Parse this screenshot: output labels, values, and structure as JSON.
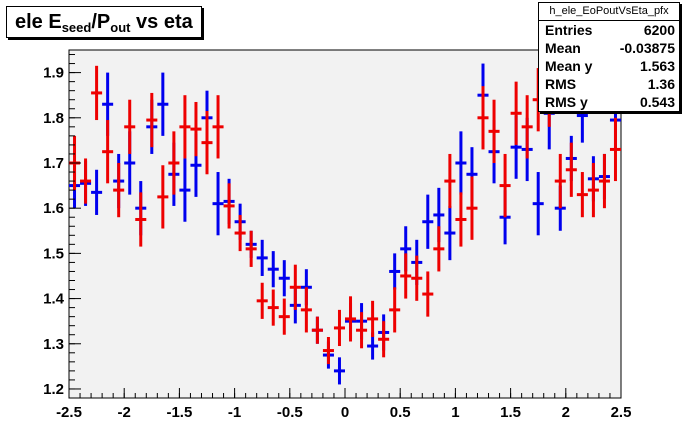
{
  "title": {
    "pre": "ele E",
    "sub1": "seed",
    "mid": "/P",
    "sub2": "out",
    "post": " vs eta"
  },
  "stats": {
    "name": "h_ele_EoPoutVsEta_pfx",
    "rows": [
      {
        "label": "Entries",
        "value": "6200"
      },
      {
        "label": "Mean",
        "value": "-0.03875"
      },
      {
        "label": "Mean y",
        "value": "1.563"
      },
      {
        "label": "RMS",
        "value": "1.36"
      },
      {
        "label": "RMS y",
        "value": "0.543"
      }
    ]
  },
  "colors": {
    "frame_bg": "#f2f2f2",
    "blue_series": "#0000ee",
    "red_series": "#ee0000",
    "axis": "#000000"
  },
  "chart_data": {
    "type": "scatter",
    "xlim": [
      -2.5,
      2.5
    ],
    "ylim": [
      1.18,
      1.95
    ],
    "grid": false,
    "xticks": [
      -2.5,
      -2,
      -1.5,
      -1,
      -0.5,
      0,
      0.5,
      1,
      1.5,
      2,
      2.5
    ],
    "xtick_labels": [
      "-2.5",
      "-2",
      "-1.5",
      "-1",
      "-0.5",
      "0",
      "0.5",
      "1",
      "1.5",
      "2",
      "2.5"
    ],
    "yticks": [
      1.2,
      1.3,
      1.4,
      1.5,
      1.6,
      1.7,
      1.8,
      1.9
    ],
    "ytick_labels": [
      "1.2",
      "1.3",
      "1.4",
      "1.5",
      "1.6",
      "1.7",
      "1.8",
      "1.9"
    ],
    "series": [
      {
        "color": "blue",
        "points": [
          {
            "x": -2.45,
            "y": 1.65,
            "err": 0.05
          },
          {
            "x": -2.35,
            "y": 1.655,
            "err": 0.05
          },
          {
            "x": -2.25,
            "y": 1.635,
            "err": 0.05
          },
          {
            "x": -2.15,
            "y": 1.83,
            "err": 0.07
          },
          {
            "x": -2.05,
            "y": 1.66,
            "err": 0.06
          },
          {
            "x": -1.95,
            "y": 1.7,
            "err": 0.07
          },
          {
            "x": -1.85,
            "y": 1.6,
            "err": 0.06
          },
          {
            "x": -1.75,
            "y": 1.78,
            "err": 0.06
          },
          {
            "x": -1.65,
            "y": 1.83,
            "err": 0.07
          },
          {
            "x": -1.55,
            "y": 1.675,
            "err": 0.07
          },
          {
            "x": -1.45,
            "y": 1.64,
            "err": 0.07
          },
          {
            "x": -1.35,
            "y": 1.695,
            "err": 0.07
          },
          {
            "x": -1.25,
            "y": 1.8,
            "err": 0.06
          },
          {
            "x": -1.15,
            "y": 1.61,
            "err": 0.07
          },
          {
            "x": -1.05,
            "y": 1.615,
            "err": 0.05
          },
          {
            "x": -0.95,
            "y": 1.57,
            "err": 0.04
          },
          {
            "x": -0.85,
            "y": 1.52,
            "err": 0.03
          },
          {
            "x": -0.75,
            "y": 1.49,
            "err": 0.04
          },
          {
            "x": -0.65,
            "y": 1.465,
            "err": 0.04
          },
          {
            "x": -0.55,
            "y": 1.445,
            "err": 0.04
          },
          {
            "x": -0.45,
            "y": 1.385,
            "err": 0.04
          },
          {
            "x": -0.35,
            "y": 1.425,
            "err": 0.04
          },
          {
            "x": -0.25,
            "y": 1.33,
            "err": 0.03
          },
          {
            "x": -0.15,
            "y": 1.275,
            "err": 0.03
          },
          {
            "x": -0.05,
            "y": 1.24,
            "err": 0.03
          },
          {
            "x": 0.05,
            "y": 1.35,
            "err": 0.04
          },
          {
            "x": 0.15,
            "y": 1.35,
            "err": 0.04
          },
          {
            "x": 0.25,
            "y": 1.295,
            "err": 0.03
          },
          {
            "x": 0.35,
            "y": 1.325,
            "err": 0.04
          },
          {
            "x": 0.45,
            "y": 1.46,
            "err": 0.04
          },
          {
            "x": 0.55,
            "y": 1.51,
            "err": 0.05
          },
          {
            "x": 0.65,
            "y": 1.48,
            "err": 0.05
          },
          {
            "x": 0.75,
            "y": 1.57,
            "err": 0.06
          },
          {
            "x": 0.85,
            "y": 1.585,
            "err": 0.06
          },
          {
            "x": 0.95,
            "y": 1.545,
            "err": 0.06
          },
          {
            "x": 1.05,
            "y": 1.7,
            "err": 0.07
          },
          {
            "x": 1.15,
            "y": 1.675,
            "err": 0.06
          },
          {
            "x": 1.25,
            "y": 1.85,
            "err": 0.07
          },
          {
            "x": 1.35,
            "y": 1.725,
            "err": 0.07
          },
          {
            "x": 1.45,
            "y": 1.58,
            "err": 0.06
          },
          {
            "x": 1.55,
            "y": 1.735,
            "err": 0.07
          },
          {
            "x": 1.65,
            "y": 1.73,
            "err": 0.07
          },
          {
            "x": 1.75,
            "y": 1.61,
            "err": 0.07
          },
          {
            "x": 1.85,
            "y": 1.81,
            "err": 0.08
          },
          {
            "x": 1.95,
            "y": 1.6,
            "err": 0.05
          },
          {
            "x": 2.05,
            "y": 1.71,
            "err": 0.05
          },
          {
            "x": 2.15,
            "y": 1.805,
            "err": 0.06
          },
          {
            "x": 2.25,
            "y": 1.665,
            "err": 0.05
          },
          {
            "x": 2.35,
            "y": 1.67,
            "err": 0.05
          },
          {
            "x": 2.45,
            "y": 1.795,
            "err": 0.07
          }
        ]
      },
      {
        "color": "red",
        "points": [
          {
            "x": -2.45,
            "y": 1.7,
            "err": 0.06
          },
          {
            "x": -2.35,
            "y": 1.66,
            "err": 0.05
          },
          {
            "x": -2.25,
            "y": 1.855,
            "err": 0.06
          },
          {
            "x": -2.15,
            "y": 1.725,
            "err": 0.07
          },
          {
            "x": -2.05,
            "y": 1.64,
            "err": 0.06
          },
          {
            "x": -1.95,
            "y": 1.78,
            "err": 0.06
          },
          {
            "x": -1.85,
            "y": 1.575,
            "err": 0.06
          },
          {
            "x": -1.75,
            "y": 1.795,
            "err": 0.06
          },
          {
            "x": -1.65,
            "y": 1.625,
            "err": 0.07
          },
          {
            "x": -1.55,
            "y": 1.7,
            "err": 0.07
          },
          {
            "x": -1.45,
            "y": 1.78,
            "err": 0.07
          },
          {
            "x": -1.35,
            "y": 1.775,
            "err": 0.06
          },
          {
            "x": -1.25,
            "y": 1.745,
            "err": 0.07
          },
          {
            "x": -1.15,
            "y": 1.78,
            "err": 0.07
          },
          {
            "x": -1.05,
            "y": 1.605,
            "err": 0.05
          },
          {
            "x": -0.95,
            "y": 1.545,
            "err": 0.04
          },
          {
            "x": -0.85,
            "y": 1.51,
            "err": 0.04
          },
          {
            "x": -0.75,
            "y": 1.395,
            "err": 0.04
          },
          {
            "x": -0.65,
            "y": 1.38,
            "err": 0.04
          },
          {
            "x": -0.55,
            "y": 1.36,
            "err": 0.04
          },
          {
            "x": -0.45,
            "y": 1.425,
            "err": 0.05
          },
          {
            "x": -0.35,
            "y": 1.375,
            "err": 0.05
          },
          {
            "x": -0.25,
            "y": 1.33,
            "err": 0.03
          },
          {
            "x": -0.15,
            "y": 1.285,
            "err": 0.03
          },
          {
            "x": -0.05,
            "y": 1.335,
            "err": 0.04
          },
          {
            "x": 0.05,
            "y": 1.355,
            "err": 0.05
          },
          {
            "x": 0.15,
            "y": 1.33,
            "err": 0.04
          },
          {
            "x": 0.25,
            "y": 1.355,
            "err": 0.04
          },
          {
            "x": 0.35,
            "y": 1.31,
            "err": 0.04
          },
          {
            "x": 0.45,
            "y": 1.375,
            "err": 0.05
          },
          {
            "x": 0.55,
            "y": 1.45,
            "err": 0.05
          },
          {
            "x": 0.65,
            "y": 1.445,
            "err": 0.05
          },
          {
            "x": 0.75,
            "y": 1.41,
            "err": 0.05
          },
          {
            "x": 0.85,
            "y": 1.51,
            "err": 0.05
          },
          {
            "x": 0.95,
            "y": 1.66,
            "err": 0.06
          },
          {
            "x": 1.05,
            "y": 1.575,
            "err": 0.06
          },
          {
            "x": 1.15,
            "y": 1.6,
            "err": 0.07
          },
          {
            "x": 1.25,
            "y": 1.8,
            "err": 0.07
          },
          {
            "x": 1.35,
            "y": 1.77,
            "err": 0.07
          },
          {
            "x": 1.45,
            "y": 1.65,
            "err": 0.07
          },
          {
            "x": 1.55,
            "y": 1.81,
            "err": 0.07
          },
          {
            "x": 1.65,
            "y": 1.78,
            "err": 0.07
          },
          {
            "x": 1.75,
            "y": 1.84,
            "err": 0.07
          },
          {
            "x": 1.85,
            "y": 1.85,
            "err": 0.07
          },
          {
            "x": 1.95,
            "y": 1.66,
            "err": 0.06
          },
          {
            "x": 2.05,
            "y": 1.685,
            "err": 0.06
          },
          {
            "x": 2.15,
            "y": 1.63,
            "err": 0.05
          },
          {
            "x": 2.25,
            "y": 1.64,
            "err": 0.06
          },
          {
            "x": 2.35,
            "y": 1.66,
            "err": 0.06
          },
          {
            "x": 2.45,
            "y": 1.73,
            "err": 0.07
          }
        ]
      }
    ]
  }
}
